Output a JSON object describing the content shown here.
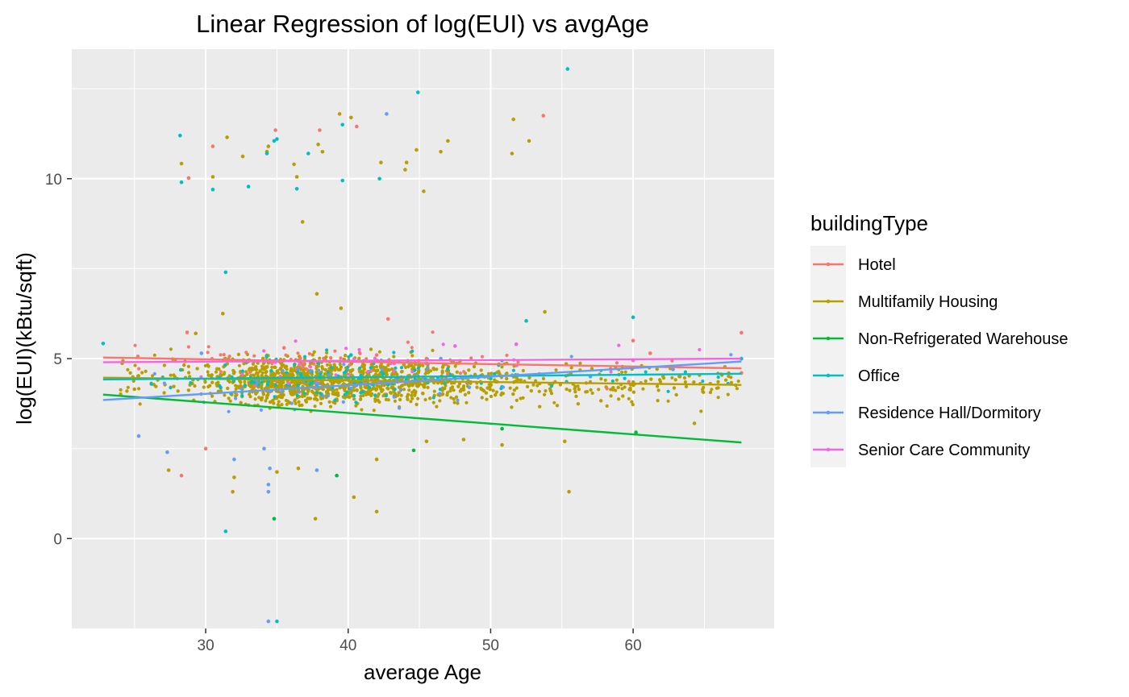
{
  "chart_data": {
    "type": "scatter",
    "title": "Linear Regression of log(EUI) vs avgAge",
    "xlabel": "average Age",
    "ylabel": "log(EUI)(kBtu/sqft)",
    "xlim": [
      20.6,
      69.9
    ],
    "ylim": [
      -2.5,
      13.6
    ],
    "x_ticks": [
      30,
      40,
      50,
      60
    ],
    "y_ticks": [
      0,
      5,
      10
    ],
    "grid": true,
    "legend": {
      "title": "buildingType",
      "placement": "right"
    },
    "series": [
      {
        "name": "Hotel",
        "color": "#F8766D",
        "fit": {
          "x": [
            22.8,
            67.6
          ],
          "y": [
            5.03,
            4.73
          ]
        },
        "points": [
          [
            28.3,
            1.75
          ],
          [
            28.7,
            5.73
          ],
          [
            28.8,
            10.02
          ],
          [
            30.0,
            2.5
          ],
          [
            30.5,
            10.9
          ],
          [
            34.9,
            11.35
          ],
          [
            38.0,
            11.35
          ],
          [
            40.6,
            11.45
          ],
          [
            41.2,
            4.3
          ],
          [
            42.0,
            5.1
          ],
          [
            42.8,
            6.1
          ],
          [
            45.5,
            5.0
          ],
          [
            53.7,
            11.75
          ],
          [
            60.0,
            5.5
          ],
          [
            61.2,
            5.15
          ],
          [
            67.6,
            5.72
          ],
          [
            67.6,
            4.6
          ],
          [
            35.5,
            5.3
          ]
        ]
      },
      {
        "name": "Multifamily Housing",
        "color": "#B79F00",
        "fit": {
          "x": [
            22.8,
            67.6
          ],
          "y": [
            4.47,
            4.27
          ]
        },
        "points": [
          [
            28.3,
            10.42
          ],
          [
            30.5,
            10.05
          ],
          [
            31.5,
            11.15
          ],
          [
            32.6,
            10.62
          ],
          [
            34.4,
            10.9
          ],
          [
            34.3,
            10.75
          ],
          [
            36.2,
            10.4
          ],
          [
            36.4,
            10.05
          ],
          [
            36.8,
            8.8
          ],
          [
            37.9,
            10.95
          ],
          [
            38.2,
            10.75
          ],
          [
            39.4,
            11.8
          ],
          [
            40.2,
            11.7
          ],
          [
            42.3,
            10.45
          ],
          [
            44.0,
            10.25
          ],
          [
            44.1,
            10.45
          ],
          [
            44.8,
            10.8
          ],
          [
            45.3,
            9.65
          ],
          [
            46.5,
            10.75
          ],
          [
            47.0,
            11.05
          ],
          [
            51.5,
            10.7
          ],
          [
            51.6,
            11.65
          ],
          [
            52.7,
            11.05
          ],
          [
            31.2,
            6.25
          ],
          [
            37.8,
            6.8
          ],
          [
            39.5,
            6.4
          ],
          [
            42.0,
            2.2
          ],
          [
            37.7,
            0.55
          ],
          [
            40.4,
            1.15
          ],
          [
            42.0,
            0.75
          ],
          [
            55.5,
            1.3
          ],
          [
            31.9,
            1.3
          ],
          [
            27.4,
            1.9
          ],
          [
            64.3,
            3.2
          ],
          [
            36.5,
            1.95
          ],
          [
            32.0,
            1.7
          ],
          [
            53.8,
            6.3
          ],
          [
            25.0,
            4.15
          ],
          [
            35.0,
            1.85
          ],
          [
            45.5,
            2.7
          ],
          [
            50.8,
            2.6
          ],
          [
            55.2,
            2.7
          ],
          [
            48.1,
            2.75
          ],
          [
            29.3,
            5.7
          ]
        ]
      },
      {
        "name": "Non-Refrigerated Warehouse",
        "color": "#00BA38",
        "fit": {
          "x": [
            22.8,
            67.6
          ],
          "y": [
            4.0,
            2.67
          ]
        },
        "points": [
          [
            34.8,
            0.55
          ],
          [
            39.2,
            1.75
          ],
          [
            44.6,
            2.45
          ],
          [
            60.2,
            2.95
          ],
          [
            50.8,
            3.05
          ]
        ]
      },
      {
        "name": "Office",
        "color": "#00BFC4",
        "fit": {
          "x": [
            22.8,
            67.6
          ],
          "y": [
            4.42,
            4.58
          ]
        },
        "points": [
          [
            22.8,
            5.42
          ],
          [
            28.2,
            11.2
          ],
          [
            28.3,
            9.9
          ],
          [
            30.5,
            9.7
          ],
          [
            33.0,
            9.78
          ],
          [
            34.3,
            10.7
          ],
          [
            34.8,
            11.05
          ],
          [
            35.0,
            11.1
          ],
          [
            36.4,
            9.72
          ],
          [
            37.2,
            10.7
          ],
          [
            39.6,
            11.5
          ],
          [
            39.6,
            9.95
          ],
          [
            42.2,
            10.0
          ],
          [
            44.9,
            12.4
          ],
          [
            55.4,
            13.05
          ],
          [
            31.4,
            7.4
          ],
          [
            31.4,
            0.2
          ],
          [
            35.0,
            -2.3
          ],
          [
            52.5,
            6.05
          ],
          [
            60.0,
            6.15
          ],
          [
            67.6,
            5.0
          ],
          [
            40.2,
            5.1
          ],
          [
            41.8,
            4.9
          ]
        ]
      },
      {
        "name": "Residence Hall/Dormitory",
        "color": "#619CFF",
        "fit": {
          "x": [
            22.8,
            67.6
          ],
          "y": [
            3.85,
            4.92
          ]
        },
        "points": [
          [
            42.7,
            11.8
          ],
          [
            34.4,
            -2.3
          ],
          [
            34.1,
            2.5
          ],
          [
            34.4,
            1.5
          ],
          [
            34.4,
            1.3
          ],
          [
            32.0,
            2.2
          ],
          [
            27.3,
            2.4
          ],
          [
            25.3,
            2.85
          ],
          [
            34.5,
            1.95
          ],
          [
            37.8,
            1.9
          ],
          [
            46.5,
            5.0
          ],
          [
            57.0,
            4.5
          ],
          [
            62.8,
            4.7
          ],
          [
            48.5,
            4.2
          ],
          [
            29.7,
            5.15
          ]
        ]
      },
      {
        "name": "Senior Care Community",
        "color": "#F564E3",
        "fit": {
          "x": [
            22.8,
            67.6
          ],
          "y": [
            4.9,
            5.0
          ]
        },
        "points": [
          [
            47.5,
            5.35
          ],
          [
            51.8,
            5.4
          ],
          [
            60.0,
            4.95
          ]
        ]
      }
    ]
  }
}
